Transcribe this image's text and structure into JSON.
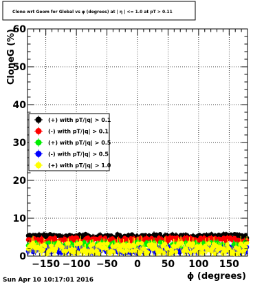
{
  "chart_data": {
    "type": "scatter",
    "title": "Clone wrt Geom for Global vs φ (degrees) at | η | <= 1.0 at pT > 0.11",
    "xlabel": "ϕ (degrees)",
    "ylabel": "CloneG (%)",
    "xlim": [
      -180,
      180
    ],
    "ylim": [
      0,
      60
    ],
    "x_ticks": [
      -150,
      -100,
      -50,
      0,
      50,
      100,
      150
    ],
    "y_ticks": [
      0,
      10,
      20,
      30,
      40,
      50,
      60
    ],
    "grid": true,
    "legend_position": "left-middle",
    "series": [
      {
        "name": "(+) with pT/|q| > 0.1",
        "color": "#000000",
        "typical": 5.2,
        "spread": 0.6,
        "err": 0.6
      },
      {
        "name": "(-) with pT/|q| > 0.1",
        "color": "#ff0000",
        "typical": 4.2,
        "spread": 0.7,
        "err": 0.7
      },
      {
        "name": "(+) with pT/|q| > 0.5",
        "color": "#00ee00",
        "typical": 2.8,
        "spread": 0.9,
        "err": 0.9
      },
      {
        "name": "(-) with pT/|q| > 0.5",
        "color": "#0000ff",
        "typical": 1.6,
        "spread": 0.8,
        "err": 0.8
      },
      {
        "name": "(+) with pT/|q| > 1.0",
        "color": "#ffff00",
        "typical": 2.0,
        "spread": 1.5,
        "err": 1.5
      }
    ]
  },
  "timestamp": "Sun Apr 10 10:17:01 2016"
}
